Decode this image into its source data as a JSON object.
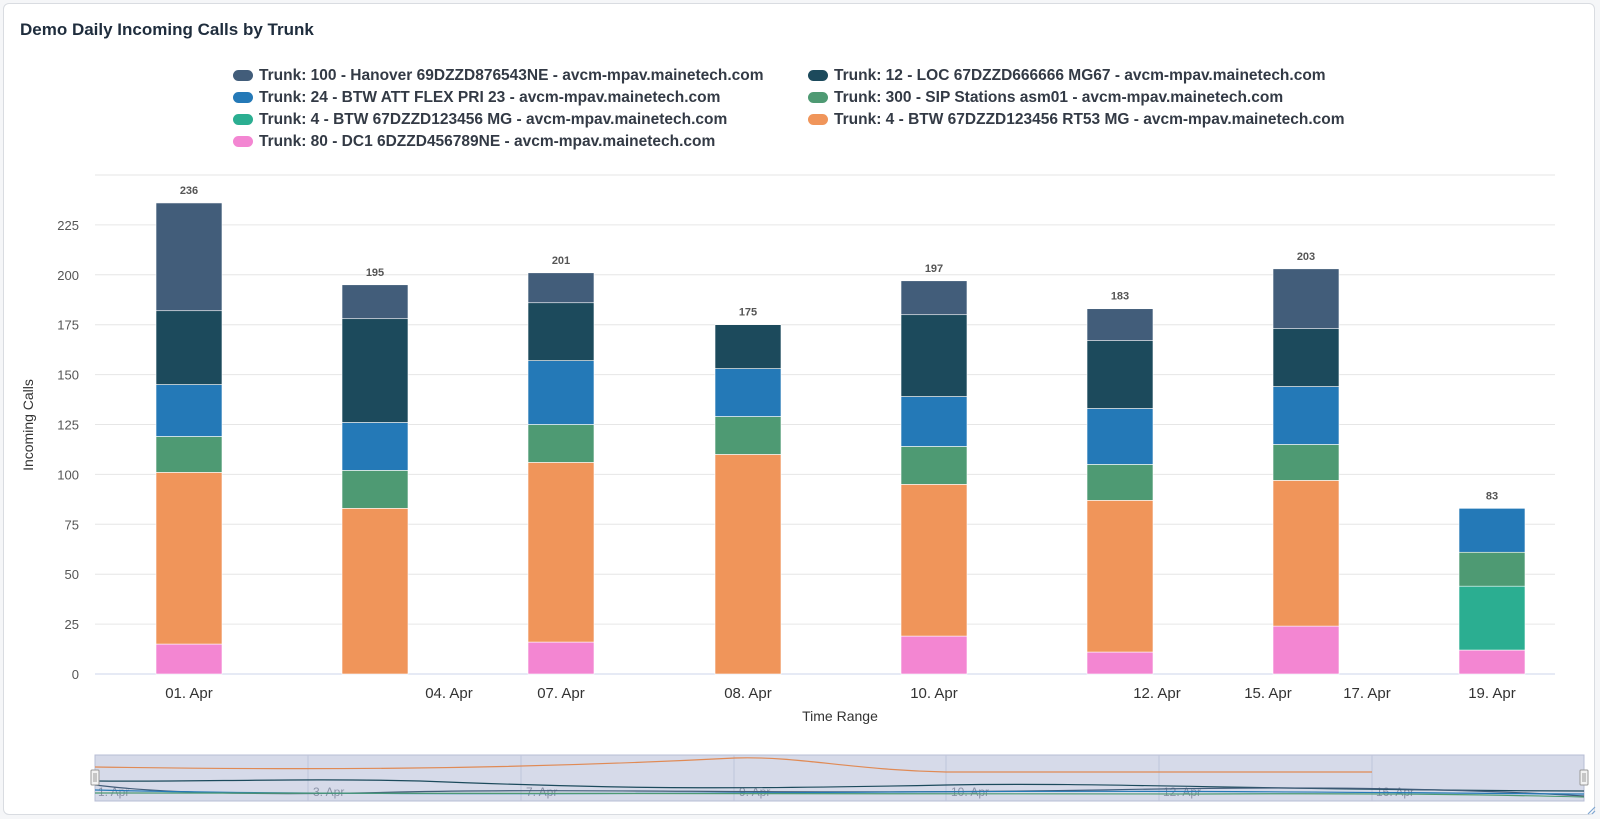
{
  "panel": {
    "title": "Demo Daily Incoming Calls by Trunk"
  },
  "chart_data": {
    "type": "bar",
    "stacked": true,
    "title": "Demo Daily Incoming Calls by Trunk",
    "xlabel": "Time Range",
    "ylabel": "Incoming Calls",
    "ylim": [
      0,
      250
    ],
    "yticks": [
      0,
      25,
      50,
      75,
      100,
      125,
      150,
      175,
      200,
      225
    ],
    "grid": true,
    "legend_position": "top",
    "categories": [
      "01. Apr",
      "04. Apr",
      "07. Apr",
      "08. Apr",
      "10. Apr",
      "12. Apr",
      "15. Apr",
      "19. Apr"
    ],
    "totals": [
      236,
      195,
      201,
      175,
      197,
      183,
      203,
      83
    ],
    "series": [
      {
        "name": "Trunk: 80 - DC1 6DZZD456789NE - avcm-mpav.mainetech.com",
        "color": "#f386d2",
        "values": [
          15,
          0,
          16,
          0,
          19,
          11,
          24,
          12
        ]
      },
      {
        "name": "Trunk: 4 - BTW 67DZZD123456 RT53 MG - avcm-mpav.mainetech.com",
        "color": "#f0955a",
        "values": [
          86,
          83,
          90,
          110,
          76,
          76,
          73,
          0
        ]
      },
      {
        "name": "Trunk: 4 - BTW 67DZZD123456 MG - avcm-mpav.mainetech.com",
        "color": "#2bae91",
        "values": [
          0,
          0,
          0,
          0,
          0,
          0,
          0,
          32
        ]
      },
      {
        "name": "Trunk: 300 - SIP Stations asm01 - avcm-mpav.mainetech.com",
        "color": "#4e9a73",
        "values": [
          18,
          19,
          19,
          19,
          19,
          18,
          18,
          17
        ]
      },
      {
        "name": "Trunk: 24 - BTW ATT FLEX PRI 23 - avcm-mpav.mainetech.com",
        "color": "#2479b7",
        "values": [
          26,
          24,
          32,
          24,
          25,
          28,
          29,
          22
        ]
      },
      {
        "name": "Trunk: 12 - LOC 67DZZD666666 MG67 - avcm-mpav.mainetech.com",
        "color": "#1c4a5c",
        "values": [
          37,
          52,
          29,
          22,
          41,
          34,
          29,
          0
        ]
      },
      {
        "name": "Trunk: 100 - Hanover 69DZZD876543NE - avcm-mpav.mainetech.com",
        "color": "#425d7a",
        "values": [
          54,
          17,
          15,
          0,
          17,
          16,
          30,
          0
        ]
      }
    ],
    "axis_labels": [
      "01. Apr",
      "04. Apr",
      "07. Apr",
      "08. Apr",
      "10. Apr",
      "12. Apr",
      "15. Apr",
      "17. Apr",
      "19. Apr"
    ],
    "navigator_labels": [
      "1. Apr",
      "3. Apr",
      "7. Apr",
      "9. Apr",
      "10. Apr",
      "12. Apr",
      "16. Apr"
    ]
  }
}
